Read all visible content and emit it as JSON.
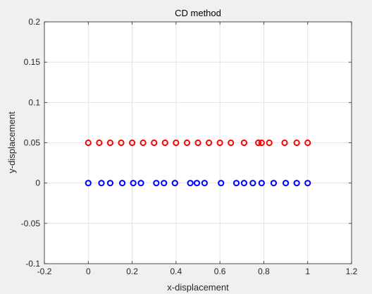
{
  "chart_data": {
    "type": "scatter",
    "title": "CD method",
    "xlabel": "x-displacement",
    "ylabel": "y-displacement",
    "xlim": [
      -0.2,
      1.2
    ],
    "ylim": [
      -0.1,
      0.2
    ],
    "xticks": [
      -0.2,
      0,
      0.2,
      0.4,
      0.6,
      0.8,
      1,
      1.2
    ],
    "xtick_labels": [
      "-0.2",
      "0",
      "0.2",
      "0.4",
      "0.6",
      "0.8",
      "1",
      "1.2"
    ],
    "yticks": [
      -0.1,
      -0.05,
      0,
      0.05,
      0.1,
      0.15,
      0.2
    ],
    "ytick_labels": [
      "-0.1",
      "-0.05",
      "0",
      "0.05",
      "0.1",
      "0.15",
      "0.2"
    ],
    "grid": true,
    "series": [
      {
        "color": "#ff0000",
        "marker": "circle-open",
        "x": [
          0.0,
          0.05,
          0.1,
          0.15,
          0.2,
          0.25,
          0.3,
          0.35,
          0.4,
          0.45,
          0.5,
          0.55,
          0.6,
          0.65,
          0.71,
          0.775,
          0.79,
          0.825,
          0.895,
          0.95,
          1.0
        ],
        "y": [
          0.05,
          0.05,
          0.05,
          0.05,
          0.05,
          0.05,
          0.05,
          0.05,
          0.05,
          0.05,
          0.05,
          0.05,
          0.05,
          0.05,
          0.05,
          0.05,
          0.05,
          0.05,
          0.05,
          0.05,
          0.05
        ]
      },
      {
        "color": "#0000ff",
        "marker": "circle-open",
        "x": [
          0.0,
          0.06,
          0.1,
          0.155,
          0.205,
          0.24,
          0.31,
          0.345,
          0.395,
          0.465,
          0.495,
          0.53,
          0.605,
          0.675,
          0.71,
          0.75,
          0.79,
          0.845,
          0.9,
          0.95,
          1.0
        ],
        "y": [
          0,
          0,
          0,
          0,
          0,
          0,
          0,
          0,
          0,
          0,
          0,
          0,
          0,
          0,
          0,
          0,
          0,
          0,
          0,
          0,
          0
        ]
      }
    ]
  }
}
